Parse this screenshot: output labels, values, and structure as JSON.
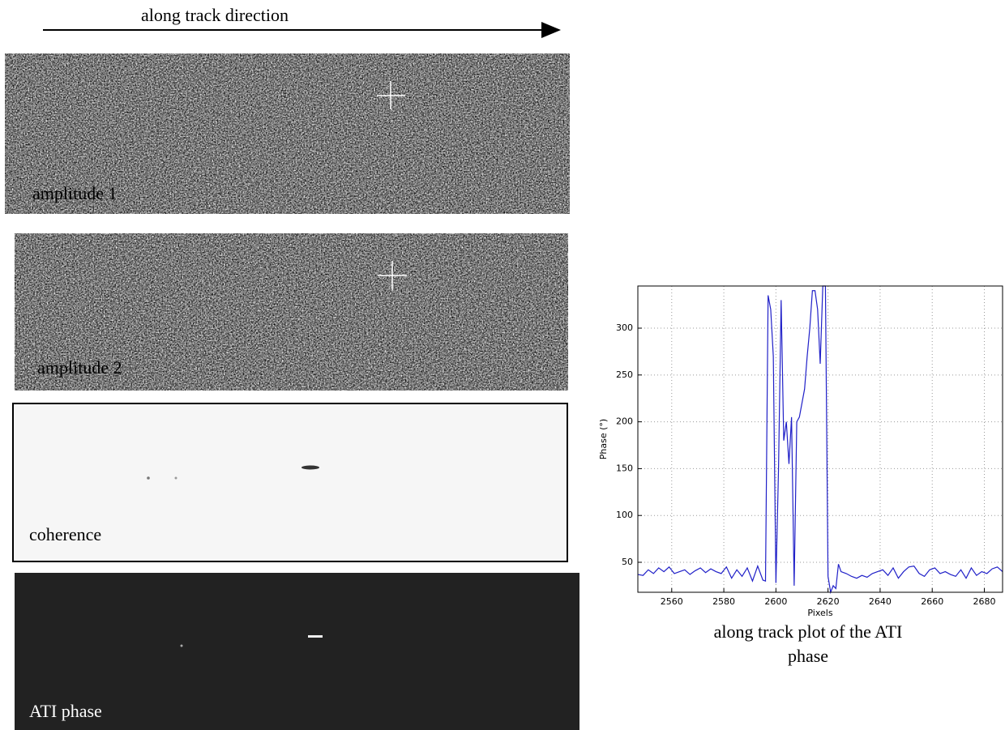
{
  "header": "along track direction",
  "panels": [
    "amplitude 1",
    "amplitude 2",
    "coherence",
    "ATI phase"
  ],
  "caption": [
    "along track plot of the ATI",
    "phase"
  ],
  "chart_data": {
    "type": "line",
    "xlabel": "Pixels",
    "ylabel": "Phase (°)",
    "xlim": [
      2547,
      2687
    ],
    "ylim": [
      18,
      345
    ],
    "xticks": [
      2560,
      2580,
      2600,
      2620,
      2640,
      2660,
      2680
    ],
    "yticks": [
      50,
      100,
      150,
      200,
      250,
      300
    ],
    "grid": true,
    "x": [
      2547,
      2549,
      2551,
      2553,
      2555,
      2557,
      2559,
      2561,
      2563,
      2565,
      2567,
      2569,
      2571,
      2573,
      2575,
      2577,
      2579,
      2581,
      2583,
      2585,
      2587,
      2589,
      2591,
      2593,
      2595,
      2596,
      2597,
      2598,
      2599,
      2600,
      2601,
      2602,
      2603,
      2604,
      2605,
      2606,
      2607,
      2608,
      2609,
      2610,
      2611,
      2612,
      2613,
      2614,
      2615,
      2616,
      2617,
      2618,
      2619,
      2620,
      2621,
      2622,
      2623,
      2624,
      2625,
      2627,
      2629,
      2631,
      2633,
      2635,
      2637,
      2639,
      2641,
      2643,
      2645,
      2647,
      2649,
      2651,
      2653,
      2655,
      2657,
      2659,
      2661,
      2663,
      2665,
      2667,
      2669,
      2671,
      2673,
      2675,
      2677,
      2679,
      2681,
      2683,
      2685,
      2687
    ],
    "series": [
      {
        "name": "ATI phase",
        "color": "#2020c8",
        "values": [
          37,
          36,
          42,
          38,
          44,
          40,
          45,
          38,
          40,
          42,
          37,
          41,
          44,
          39,
          43,
          40,
          38,
          45,
          33,
          42,
          35,
          44,
          30,
          46,
          31,
          30,
          335,
          320,
          270,
          28,
          150,
          330,
          180,
          200,
          155,
          205,
          25,
          200,
          205,
          220,
          235,
          270,
          300,
          340,
          340,
          320,
          262,
          345,
          345,
          35,
          18,
          25,
          22,
          48,
          40,
          38,
          35,
          33,
          36,
          34,
          38,
          40,
          42,
          36,
          44,
          33,
          40,
          45,
          46,
          38,
          35,
          42,
          44,
          38,
          40,
          37,
          35,
          42,
          33,
          44,
          36,
          40,
          38,
          43,
          45,
          40
        ]
      }
    ]
  }
}
